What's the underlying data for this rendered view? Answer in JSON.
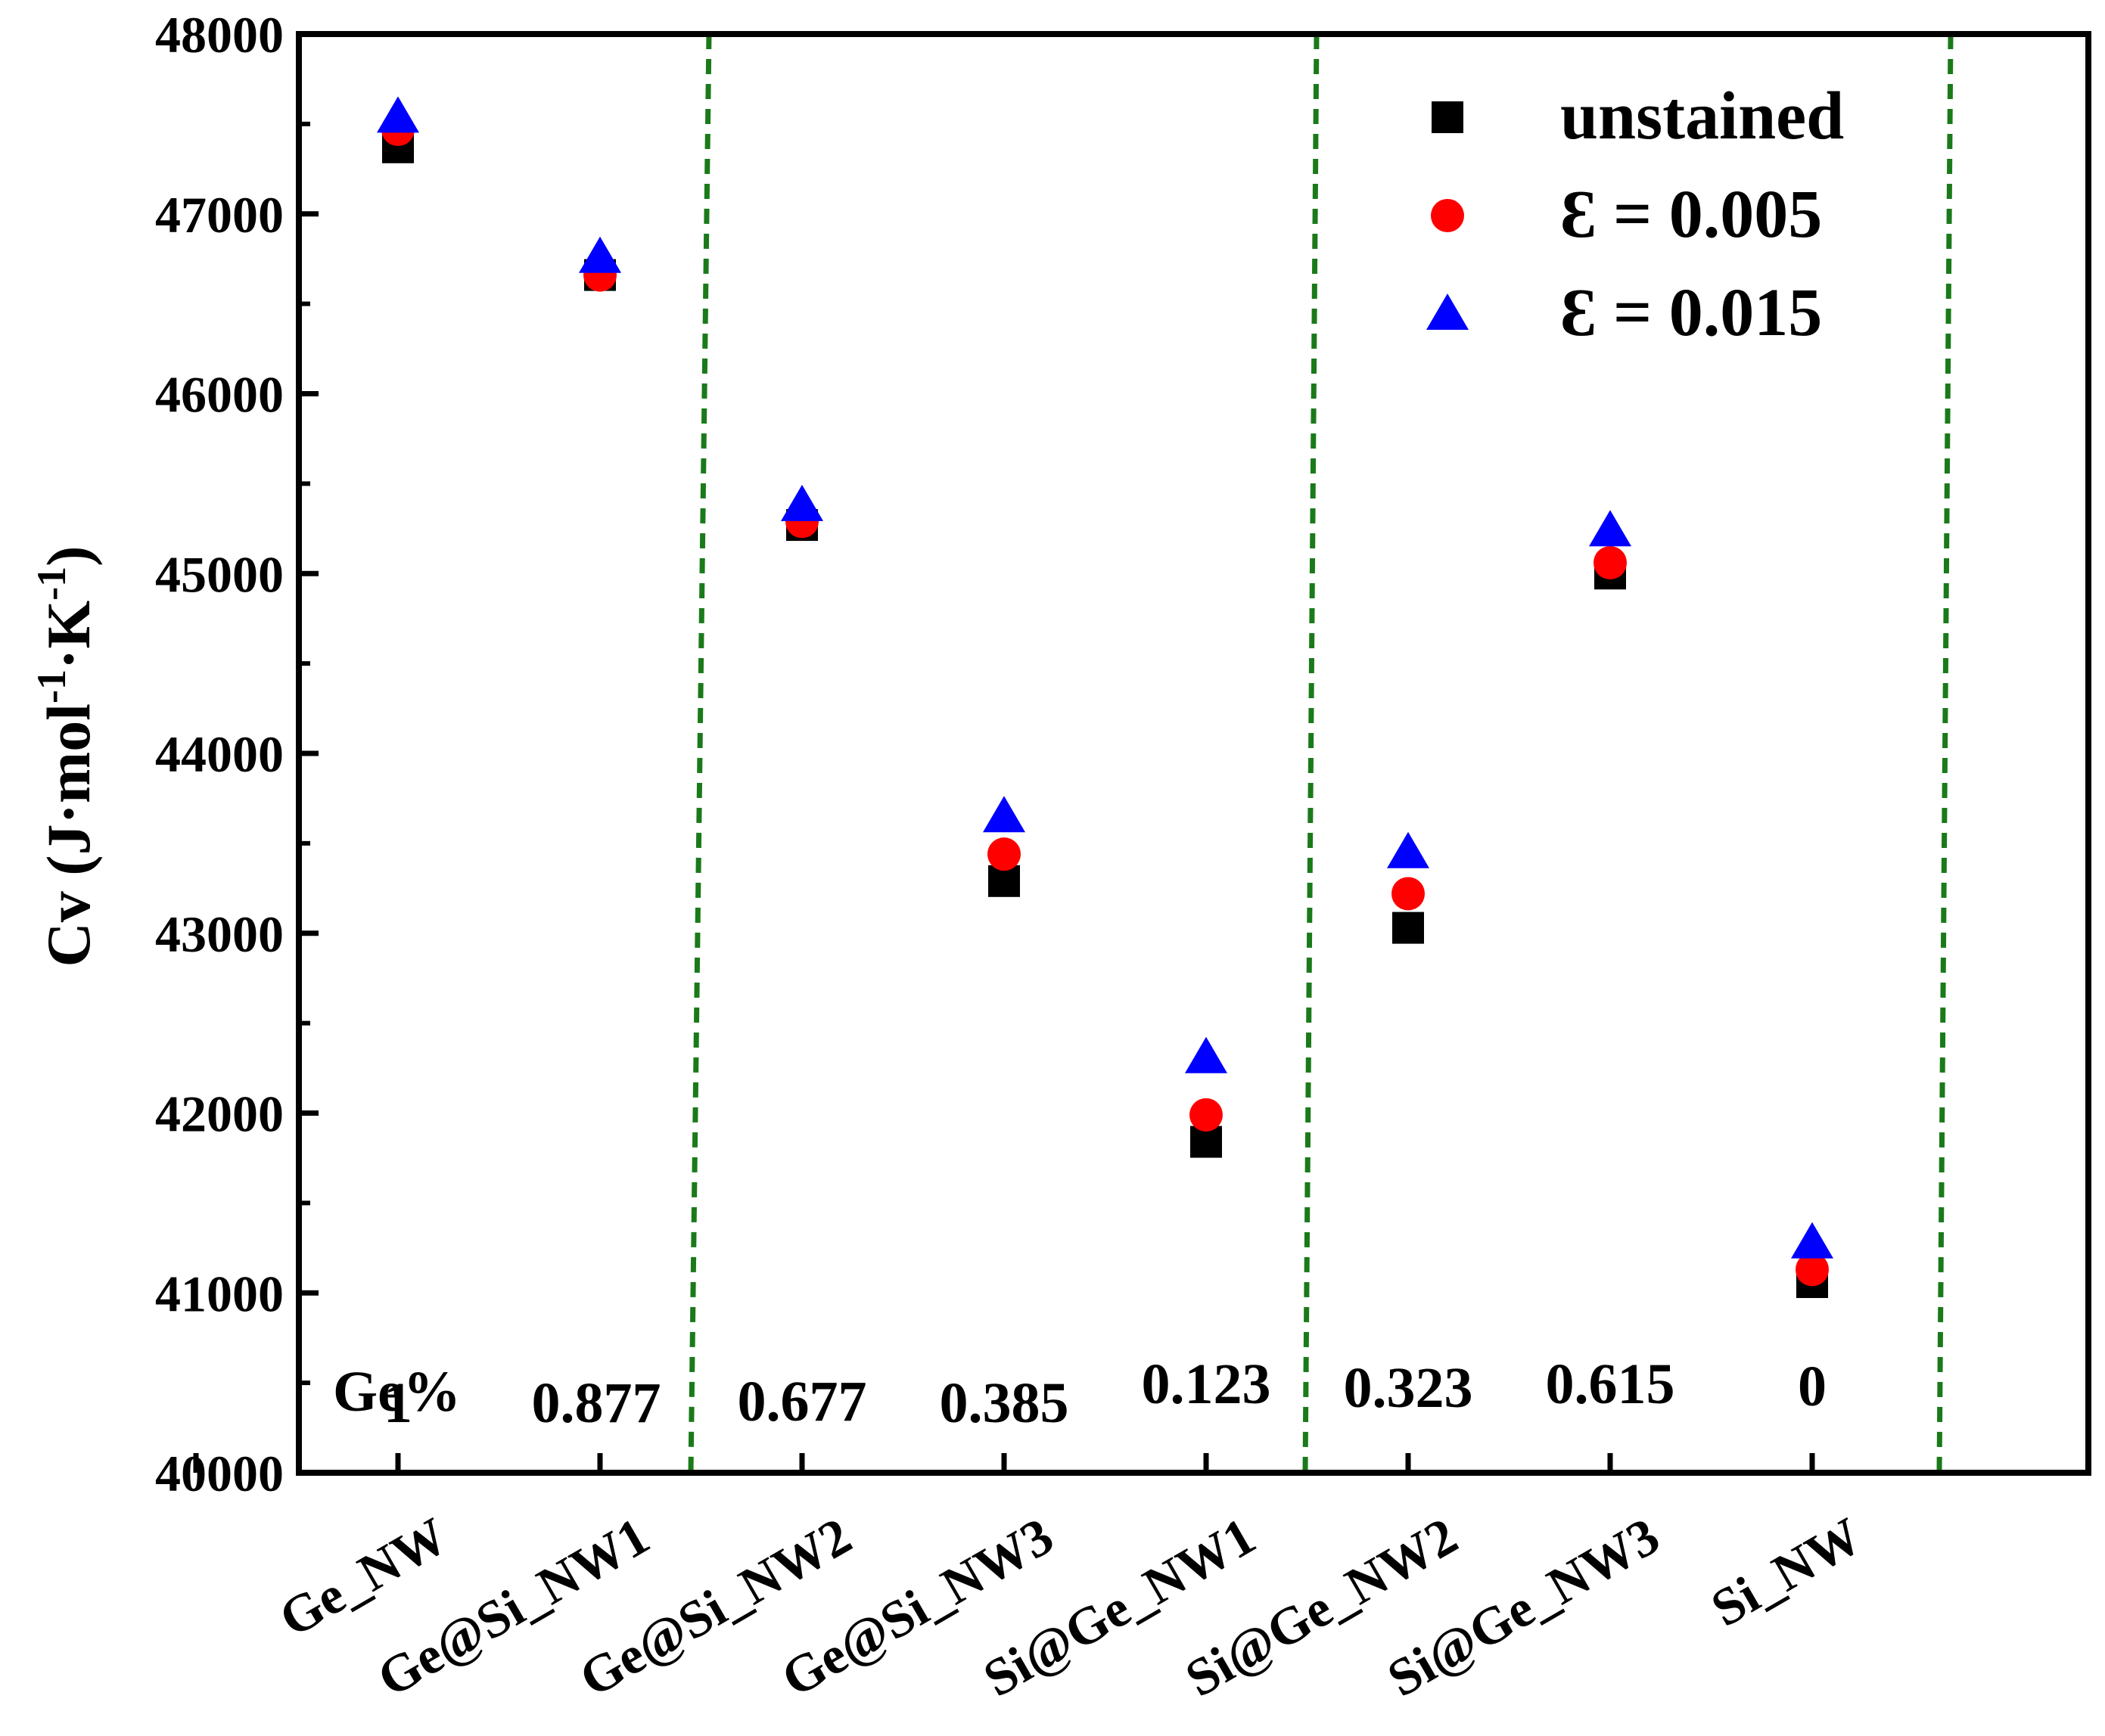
{
  "chart_data": {
    "type": "scatter",
    "ylabel_main": "Cv (J·mol",
    "ylabel_sup1": "-1",
    "ylabel_mid": "·K",
    "ylabel_sup2": "-1",
    "ylabel_end": ")",
    "xlabel": "",
    "ylim": [
      40000,
      48000
    ],
    "yticks": [
      40000,
      41000,
      42000,
      43000,
      44000,
      45000,
      46000,
      47000,
      48000
    ],
    "categories": [
      "Ge_NW",
      "Ge@Si_NW1",
      "Ge@Si_NW2",
      "Ge@Si_NW3",
      "Si@Ge_NW1",
      "Si@Ge_NW2",
      "Si@Ge_NW3",
      "Si_NW"
    ],
    "ge_label": "Ge%",
    "ge_fraction": [
      "1",
      "0.877",
      "0.677",
      "0.385",
      "0.123",
      "0.323",
      "0.615",
      "0"
    ],
    "series": [
      {
        "name": "unstained",
        "marker": "square",
        "color": "#000000",
        "values": [
          47370,
          46660,
          45270,
          43290,
          41840,
          43030,
          45000,
          41060
        ]
      },
      {
        "name": "Ɛ = 0.005",
        "marker": "circle",
        "color": "#ff0000",
        "values": [
          47470,
          46660,
          45290,
          43440,
          41990,
          43220,
          45060,
          41130
        ]
      },
      {
        "name": "Ɛ = 0.015",
        "marker": "triangle",
        "color": "#0000ff",
        "values": [
          47540,
          46760,
          45380,
          43650,
          42310,
          43450,
          45240,
          41280
        ]
      }
    ],
    "legend_position": "top-right",
    "separator_color": "#1a7a1a"
  }
}
